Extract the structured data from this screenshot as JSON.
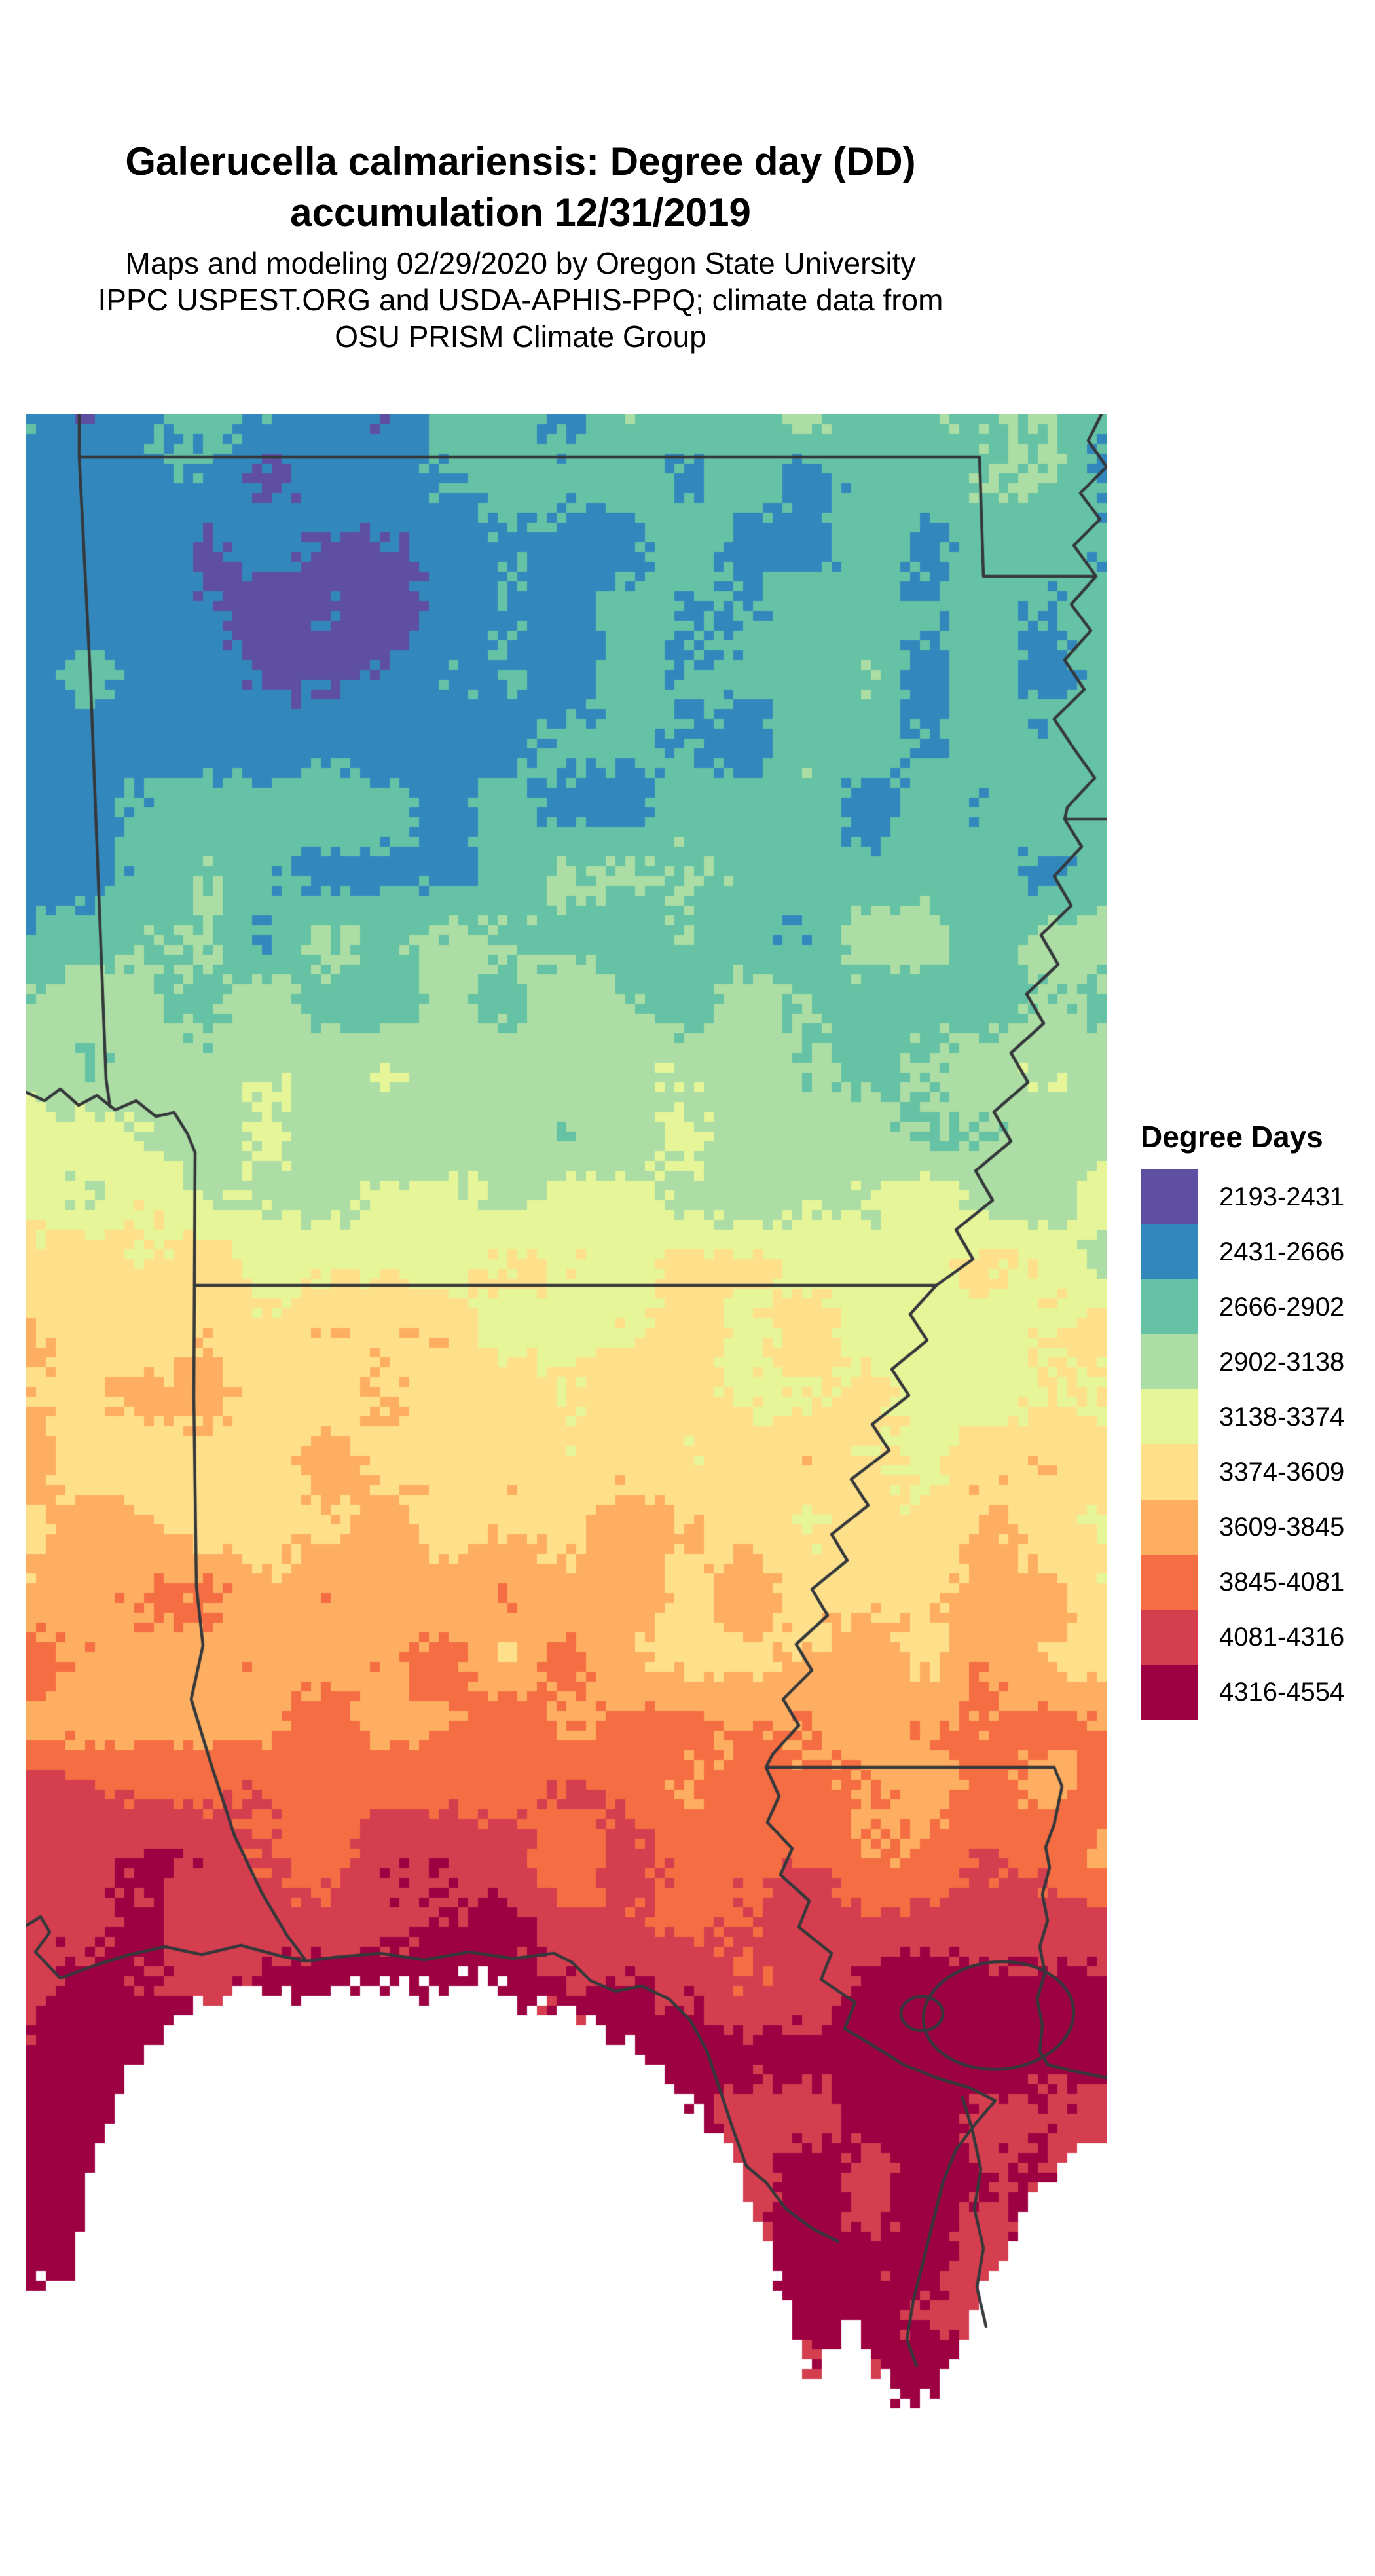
{
  "title": {
    "line1": "Galerucella calmariensis: Degree day (DD)",
    "line2": "accumulation 12/31/2019"
  },
  "subtitle": {
    "line1": "Maps and modeling 02/29/2020 by Oregon State University",
    "line2": "IPPC USPEST.ORG and USDA-APHIS-PPQ; climate data from",
    "line3": "OSU PRISM Climate Group"
  },
  "legend": {
    "title": "Degree Days",
    "classes": [
      {
        "label": "2193-2431",
        "color": "#5e4fa2"
      },
      {
        "label": "2431-2666",
        "color": "#3288bd"
      },
      {
        "label": "2666-2902",
        "color": "#66c2a5"
      },
      {
        "label": "2902-3138",
        "color": "#abdda4"
      },
      {
        "label": "3138-3374",
        "color": "#e6f598"
      },
      {
        "label": "3374-3609",
        "color": "#fee08b"
      },
      {
        "label": "3609-3845",
        "color": "#fdae61"
      },
      {
        "label": "3845-4081",
        "color": "#f46d43"
      },
      {
        "label": "4081-4316",
        "color": "#d53e4f"
      },
      {
        "label": "4316-4554",
        "color": "#9e0142"
      }
    ]
  },
  "map": {
    "boundary_color": "#35383b",
    "nodata_color": "#ffffff"
  },
  "chart_data": {
    "type": "heatmap",
    "subtype": "choropleth-raster-map",
    "title": "Galerucella calmariensis: Degree day (DD) accumulation 12/31/2019",
    "subtitle": "Maps and modeling 02/29/2020 by Oregon State University IPPC USPEST.ORG and USDA-APHIS-PPQ; climate data from OSU PRISM Climate Group",
    "legend_title": "Degree Days",
    "legend_position": "right",
    "classes": [
      {
        "range": [
          2193,
          2431
        ],
        "color": "#5e4fa2"
      },
      {
        "range": [
          2431,
          2666
        ],
        "color": "#3288bd"
      },
      {
        "range": [
          2666,
          2902
        ],
        "color": "#66c2a5"
      },
      {
        "range": [
          2902,
          3138
        ],
        "color": "#abdda4"
      },
      {
        "range": [
          3138,
          3374
        ],
        "color": "#e6f598"
      },
      {
        "range": [
          3374,
          3609
        ],
        "color": "#fee08b"
      },
      {
        "range": [
          3609,
          3845
        ],
        "color": "#fdae61"
      },
      {
        "range": [
          3845,
          4081
        ],
        "color": "#f46d43"
      },
      {
        "range": [
          4081,
          4316
        ],
        "color": "#d53e4f"
      },
      {
        "range": [
          4316,
          4554
        ],
        "color": "#9e0142"
      }
    ],
    "value_min": 2193,
    "value_max": 4554,
    "gradient_direction": "low degree-days (purple/blue) in the north to high degree-days (red/dark red) at the southern gulf coast"
  }
}
